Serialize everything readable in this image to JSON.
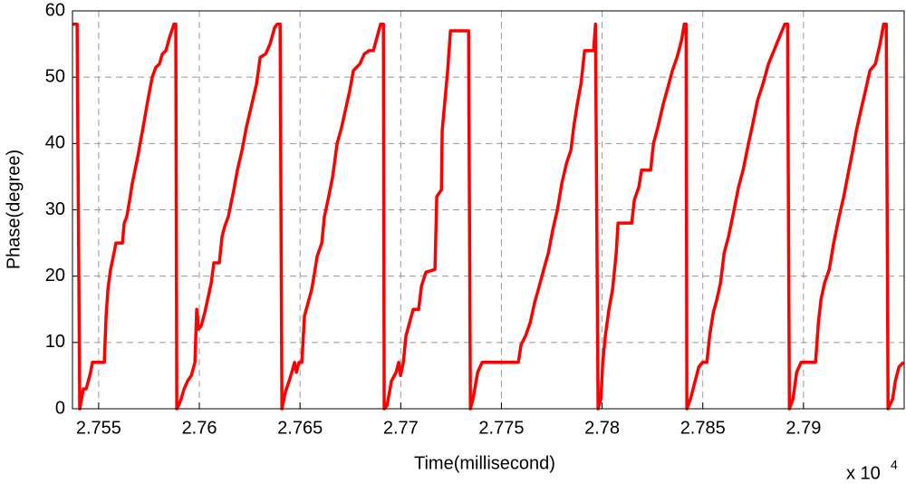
{
  "chart_data": {
    "type": "line",
    "x_label": "Time(millisecond)",
    "y_label": "Phase(degree)",
    "x_multiplier": "x 10",
    "x_multiplier_exponent": "4",
    "color": "#ff0000",
    "grid": true,
    "xlim": [
      2.7537,
      2.795
    ],
    "ylim": [
      0,
      60
    ],
    "xticks": [
      2.755,
      2.76,
      2.765,
      2.77,
      2.775,
      2.78,
      2.785,
      2.79
    ],
    "yticks": [
      0,
      10,
      20,
      30,
      40,
      50,
      60
    ],
    "x": [
      2.7537,
      2.75393,
      2.75406,
      2.75415,
      2.75424,
      2.75438,
      2.75447,
      2.7546,
      2.75469,
      2.75528,
      2.75537,
      2.75546,
      2.75559,
      2.75573,
      2.75586,
      2.75618,
      2.75627,
      2.7564,
      2.75654,
      2.75667,
      2.75694,
      2.75721,
      2.75744,
      2.75766,
      2.75784,
      2.75802,
      2.75816,
      2.75834,
      2.75852,
      2.75874,
      2.75883,
      2.75888,
      2.75897,
      2.7591,
      2.75924,
      2.75942,
      2.7596,
      2.75978,
      2.75987,
      2.75996,
      2.76009,
      2.76027,
      2.76045,
      2.76059,
      2.76072,
      2.76099,
      2.76113,
      2.76126,
      2.76144,
      2.76171,
      2.76189,
      2.76212,
      2.76234,
      2.76261,
      2.76284,
      2.76302,
      2.76329,
      2.76351,
      2.76374,
      2.76387,
      2.76401,
      2.7641,
      2.76428,
      2.76446,
      2.76459,
      2.76473,
      2.76482,
      2.76495,
      2.76509,
      2.76522,
      2.7654,
      2.76558,
      2.76572,
      2.76585,
      2.76608,
      2.76621,
      2.76639,
      2.76662,
      2.76684,
      2.76707,
      2.76725,
      2.76747,
      2.76765,
      2.76797,
      2.76819,
      2.76842,
      2.76864,
      2.76882,
      2.769,
      2.76914,
      2.76918,
      2.76932,
      2.76954,
      2.76977,
      2.7699,
      2.76999,
      2.77013,
      2.77026,
      2.77044,
      2.77062,
      2.77089,
      2.77103,
      2.77125,
      2.7717,
      2.77179,
      2.77202,
      2.77206,
      2.77215,
      2.77233,
      2.77247,
      2.77337,
      2.77346,
      2.77359,
      2.77382,
      2.77404,
      2.77584,
      2.77598,
      2.7762,
      2.77643,
      2.77665,
      2.77688,
      2.7771,
      2.77733,
      2.77755,
      2.77778,
      2.778,
      2.77823,
      2.77845,
      2.77859,
      2.77877,
      2.77895,
      2.77913,
      2.77958,
      2.77967,
      2.7798,
      2.77994,
      2.78003,
      2.78016,
      2.78034,
      2.78052,
      2.7807,
      2.78079,
      2.78147,
      2.7816,
      2.78183,
      2.78196,
      2.78241,
      2.78255,
      2.78277,
      2.78304,
      2.78327,
      2.78349,
      2.78372,
      2.78394,
      2.78408,
      2.78417,
      2.78421,
      2.78439,
      2.78462,
      2.7848,
      2.78498,
      2.7852,
      2.78534,
      2.78552,
      2.7857,
      2.78588,
      2.78606,
      2.78628,
      2.78655,
      2.78678,
      2.787,
      2.78727,
      2.78745,
      2.78772,
      2.78799,
      2.78826,
      2.78853,
      2.7888,
      2.78907,
      2.78921,
      2.7893,
      2.78948,
      2.78966,
      2.78988,
      2.7906,
      2.79074,
      2.79087,
      2.79105,
      2.79128,
      2.7915,
      2.79177,
      2.792,
      2.79222,
      2.79245,
      2.79263,
      2.79285,
      2.79308,
      2.7933,
      2.79357,
      2.7938,
      2.79398,
      2.79411,
      2.7942,
      2.79443,
      2.79456,
      2.79474,
      2.79497
    ],
    "values": [
      58,
      58,
      0,
      1.5,
      3,
      3,
      4,
      5.5,
      7,
      7,
      14,
      18,
      21,
      23,
      25,
      25,
      28,
      29,
      31.5,
      34,
      38,
      42.5,
      46.5,
      50,
      51.5,
      52,
      53.5,
      54,
      56,
      58,
      58,
      0,
      0.5,
      1.5,
      3,
      4.2,
      5,
      7,
      15,
      12,
      12.5,
      14.5,
      17,
      19,
      22,
      22,
      26,
      27.5,
      29,
      33,
      36,
      39,
      42.5,
      46,
      49,
      53,
      53.5,
      55,
      57.5,
      58,
      58,
      0,
      2.6,
      4.2,
      5.5,
      7,
      5.5,
      7,
      7,
      14,
      16,
      18,
      20.5,
      23,
      25,
      29,
      31.5,
      35,
      40,
      42.5,
      45,
      48,
      51,
      52,
      53.5,
      54,
      54,
      56,
      58,
      58,
      0,
      0.5,
      4.2,
      5.5,
      7,
      5,
      7,
      11,
      13,
      15,
      15,
      18.5,
      20.6,
      21,
      32,
      33,
      42,
      45,
      51,
      57,
      57,
      0,
      1.5,
      5.5,
      7,
      7,
      9.7,
      11,
      13,
      16,
      18.5,
      21,
      23.5,
      27,
      30,
      34,
      37,
      39,
      42.5,
      46,
      49,
      54,
      54,
      58,
      0,
      1.5,
      7,
      11,
      15,
      18,
      23.5,
      28,
      28,
      31.5,
      33.5,
      36,
      36,
      40,
      42.5,
      46,
      48.5,
      51,
      53,
      55.5,
      58,
      58,
      0,
      1.5,
      4.2,
      6.3,
      7,
      7,
      11,
      14.5,
      16.5,
      19,
      23.5,
      26,
      30,
      33.5,
      36,
      40,
      42.5,
      46.5,
      49,
      52,
      54,
      56,
      58,
      58,
      0,
      1.5,
      5.5,
      7,
      7,
      13,
      16.5,
      19,
      21,
      25,
      29,
      32,
      35.5,
      39,
      42,
      45,
      48,
      51,
      52,
      55,
      58,
      58,
      0,
      1.5,
      4.2,
      6.3,
      7
    ]
  }
}
